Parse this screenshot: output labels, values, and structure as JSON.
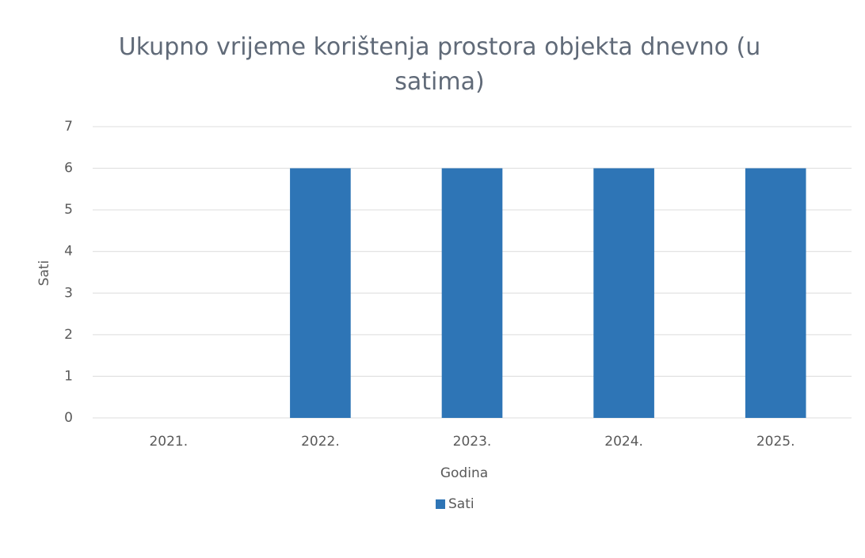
{
  "chart_data": {
    "type": "bar",
    "title": "Ukupno vrijeme korištenja prostora objekta dnevno (u satima)",
    "x_label": "Godina",
    "y_label": "Sati",
    "categories": [
      "2021.",
      "2022.",
      "2023.",
      "2024.",
      "2025."
    ],
    "series": [
      {
        "name": "Sati",
        "color": "#2e75b6",
        "values": [
          0,
          6,
          6,
          6,
          6
        ]
      }
    ],
    "ylim": [
      0,
      7
    ],
    "yticks": [
      0,
      1,
      2,
      3,
      4,
      5,
      6,
      7
    ],
    "grid": true,
    "legend": "bottom"
  }
}
